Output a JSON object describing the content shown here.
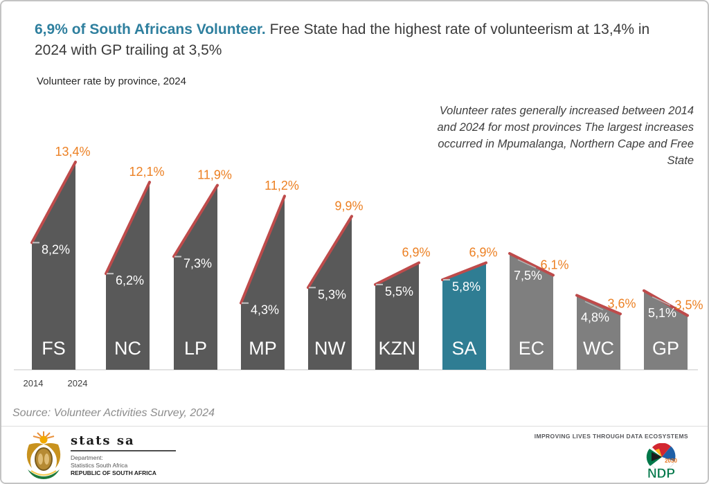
{
  "header": {
    "highlight": "6,9% of South Africans Volunteer.",
    "rest_line1": " Free State had the highest rate of volunteerism at 13,4% in",
    "line2": "2024 with GP trailing at 3,5%",
    "subtitle": "Volunteer rate by province, 2024"
  },
  "annotation": {
    "lines": [
      "Volunteer rates generally increased between 2014",
      "and 2024 for most provinces The largest increases",
      "occurred in Mpumalanga, Northern Cape and Free",
      "State"
    ]
  },
  "chart_data": {
    "type": "bar",
    "subtype": "slope-top-columns",
    "unit": "%",
    "title": "Volunteer rate by province, 2024",
    "year_labels": [
      "2014",
      "2024"
    ],
    "categories": [
      "FS",
      "NC",
      "LP",
      "MP",
      "NW",
      "KZN",
      "SA",
      "EC",
      "WC",
      "GP"
    ],
    "series": [
      {
        "name": "2014",
        "values": [
          8.2,
          6.2,
          7.3,
          4.3,
          5.3,
          5.5,
          5.8,
          7.5,
          4.8,
          5.1
        ]
      },
      {
        "name": "2024",
        "values": [
          13.4,
          12.1,
          11.9,
          11.2,
          9.9,
          6.9,
          6.9,
          6.1,
          3.6,
          3.5
        ]
      }
    ],
    "provinces": [
      {
        "code": "FS",
        "v2014": 8.2,
        "v2024": 13.4,
        "label2014": "8,2%",
        "label2024": "13,4%",
        "trend": "up"
      },
      {
        "code": "NC",
        "v2014": 6.2,
        "v2024": 12.1,
        "label2014": "6,2%",
        "label2024": "12,1%",
        "trend": "up"
      },
      {
        "code": "LP",
        "v2014": 7.3,
        "v2024": 11.9,
        "label2014": "7,3%",
        "label2024": "11,9%",
        "trend": "up"
      },
      {
        "code": "MP",
        "v2014": 4.3,
        "v2024": 11.2,
        "label2014": "4,3%",
        "label2024": "11,2%",
        "trend": "up"
      },
      {
        "code": "NW",
        "v2014": 5.3,
        "v2024": 9.9,
        "label2014": "5,3%",
        "label2024": "9,9%",
        "trend": "up"
      },
      {
        "code": "KZN",
        "v2014": 5.5,
        "v2024": 6.9,
        "label2014": "5,5%",
        "label2024": "6,9%",
        "trend": "up"
      },
      {
        "code": "SA",
        "v2014": 5.8,
        "v2024": 6.9,
        "label2014": "5,8%",
        "label2024": "6,9%",
        "trend": "up",
        "highlight": true
      },
      {
        "code": "EC",
        "v2014": 7.5,
        "v2024": 6.1,
        "label2014": "7,5%",
        "label2024": "6,1%",
        "trend": "down"
      },
      {
        "code": "WC",
        "v2014": 4.8,
        "v2024": 3.6,
        "label2014": "4,8%",
        "label2024": "3,6%",
        "trend": "down"
      },
      {
        "code": "GP",
        "v2014": 5.1,
        "v2024": 3.5,
        "label2014": "5,1%",
        "label2024": "3,5%",
        "trend": "down"
      }
    ],
    "colors": {
      "bar_up": "#595959",
      "bar_down": "#7f7f7f",
      "bar_highlight": "#2f7d93",
      "trend_line": "#be4b4b",
      "label_2024": "#ec8023",
      "label_2014": "#ffffff",
      "axis_line": "#d9d9d9"
    },
    "ylim": [
      0,
      14
    ],
    "grid": false,
    "legend_position": "below-first-bar"
  },
  "source": {
    "text": "Source: Volunteer Activities Survey, 2024"
  },
  "footer": {
    "stats_sa": {
      "brand": "stats sa",
      "dept_line1": "Department:",
      "dept_line2": "Statistics South Africa",
      "dept_line3": "REPUBLIC OF SOUTH AFRICA"
    },
    "tagline": "IMPROVING LIVES THROUGH DATA ECOSYSTEMS",
    "ndp": {
      "label": "NDP",
      "year": "2030"
    }
  }
}
